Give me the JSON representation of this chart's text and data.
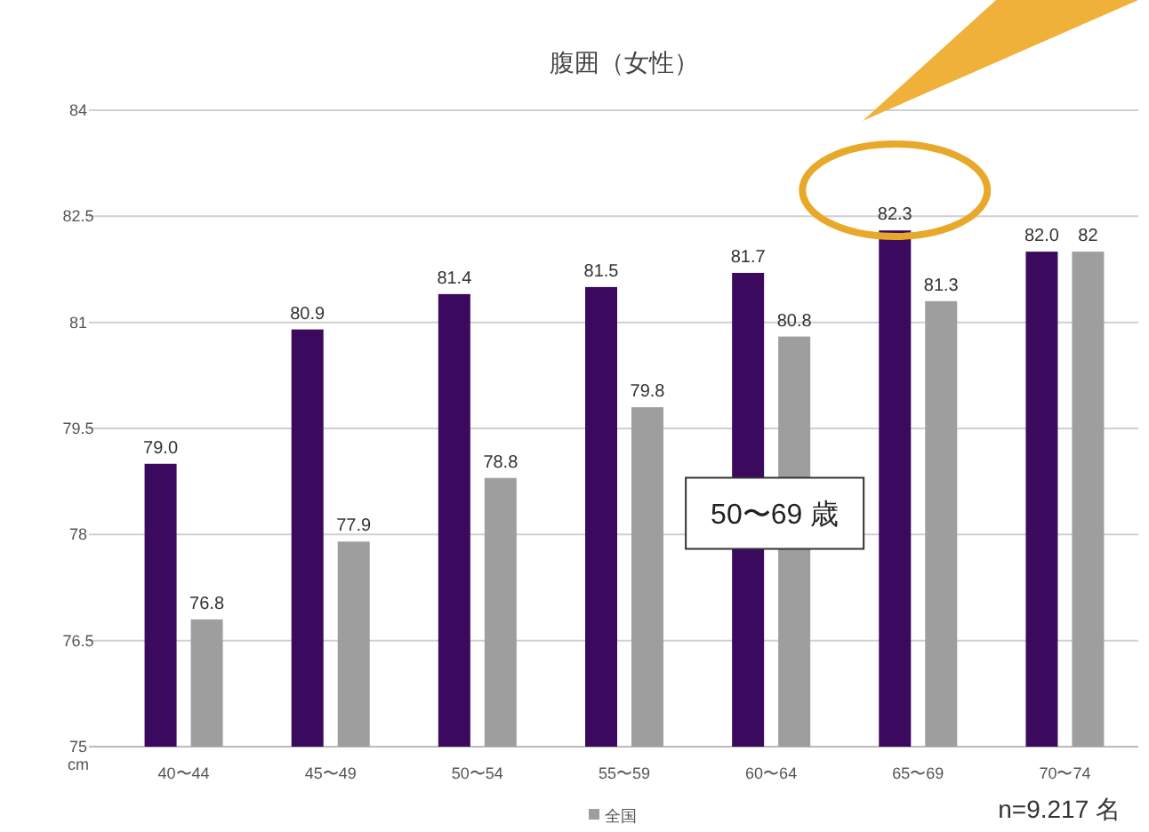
{
  "chart_data": {
    "type": "bar",
    "title": "腹囲（女性）",
    "ylabel": "cm",
    "categories": [
      "40〜44",
      "45〜49",
      "50〜54",
      "55〜59",
      "60〜64",
      "65〜69",
      "70〜74"
    ],
    "series": [
      {
        "color": "#3b0a5e",
        "values": [
          79.0,
          80.9,
          81.4,
          81.5,
          81.7,
          82.3,
          82.0
        ],
        "value_labels": [
          "79.0",
          "80.9",
          "81.4",
          "81.5",
          "81.7",
          "82.3",
          "82.0"
        ]
      },
      {
        "name": "全国",
        "color": "#9e9e9e",
        "values": [
          76.8,
          77.9,
          78.8,
          79.8,
          80.8,
          81.3,
          82
        ],
        "value_labels": [
          "76.8",
          "77.9",
          "78.8",
          "79.8",
          "80.8",
          "81.3",
          "82"
        ]
      }
    ],
    "ylim": [
      75,
      84
    ],
    "yticks": [
      75,
      76.5,
      78,
      79.5,
      81,
      82.5,
      84
    ],
    "grid": "y",
    "legend": "bottom",
    "annotations": [
      {
        "text": "50〜69 歳",
        "x": "60〜64",
        "y": 78.3
      },
      "n=9.217 名"
    ]
  }
}
